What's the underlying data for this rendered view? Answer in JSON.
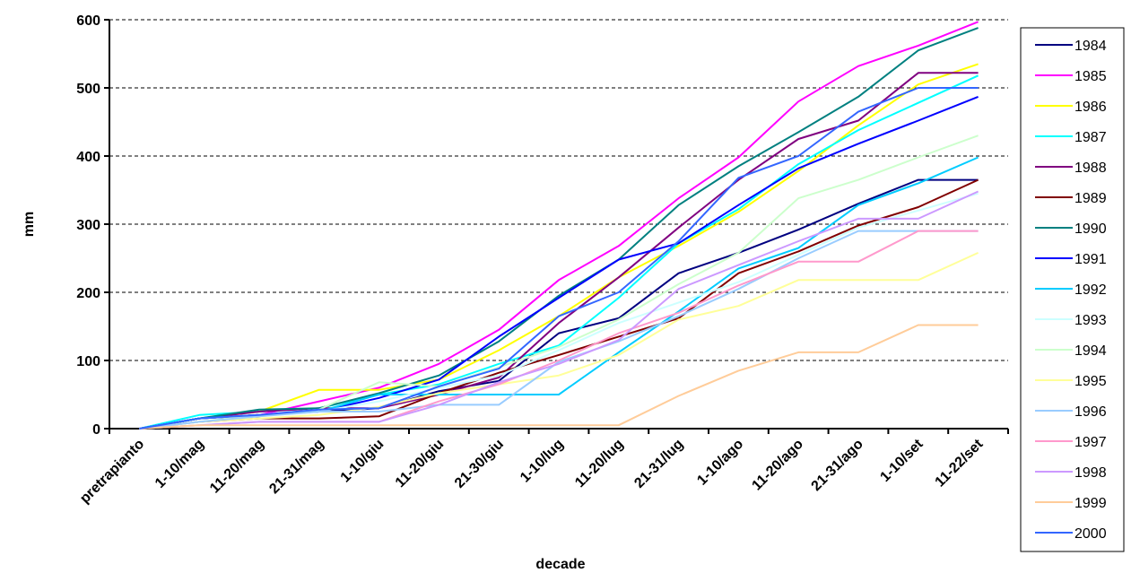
{
  "chart_data": {
    "type": "line",
    "xlabel": "decade",
    "ylabel": "mm",
    "ylim": [
      0,
      600
    ],
    "yticks": [
      0,
      100,
      200,
      300,
      400,
      500,
      600
    ],
    "grid": "horizontal dashed",
    "legend_position": "right",
    "categories": [
      "pretrapianto",
      "1-10/mag",
      "11-20/mag",
      "21-31/mag",
      "1-10/giu",
      "11-20/giu",
      "21-30/giu",
      "1-10/lug",
      "11-20/lug",
      "21-31/lug",
      "1-10/ago",
      "11-20/ago",
      "21-31/ago",
      "1-10/set",
      "11-22/set"
    ],
    "series": [
      {
        "name": "1984",
        "color": "#000080",
        "values": [
          0,
          15,
          20,
          25,
          30,
          55,
          70,
          140,
          162,
          228,
          258,
          292,
          330,
          365,
          365
        ]
      },
      {
        "name": "1985",
        "color": "#FF00FF",
        "values": [
          0,
          15,
          20,
          40,
          60,
          95,
          145,
          218,
          268,
          338,
          398,
          480,
          532,
          562,
          597
        ]
      },
      {
        "name": "1986",
        "color": "#FFFF00",
        "values": [
          0,
          15,
          25,
          57,
          57,
          72,
          115,
          165,
          222,
          268,
          318,
          378,
          445,
          505,
          535
        ]
      },
      {
        "name": "1987",
        "color": "#00FFFF",
        "values": [
          0,
          20,
          25,
          30,
          50,
          65,
          95,
          122,
          192,
          272,
          322,
          388,
          438,
          478,
          518
        ]
      },
      {
        "name": "1988",
        "color": "#800080",
        "values": [
          0,
          15,
          25,
          30,
          30,
          50,
          75,
          155,
          222,
          295,
          365,
          425,
          452,
          522,
          522
        ]
      },
      {
        "name": "1989",
        "color": "#800000",
        "values": [
          0,
          10,
          15,
          15,
          18,
          52,
          82,
          108,
          135,
          162,
          228,
          260,
          298,
          325,
          365
        ]
      },
      {
        "name": "1990",
        "color": "#008080",
        "values": [
          0,
          15,
          28,
          30,
          52,
          78,
          128,
          195,
          248,
          328,
          385,
          435,
          487,
          555,
          588
        ]
      },
      {
        "name": "1991",
        "color": "#0000FF",
        "values": [
          0,
          15,
          20,
          25,
          45,
          72,
          135,
          192,
          248,
          272,
          328,
          382,
          418,
          452,
          487
        ]
      },
      {
        "name": "1992",
        "color": "#00CCFF",
        "values": [
          0,
          15,
          20,
          25,
          50,
          50,
          50,
          50,
          112,
          172,
          235,
          265,
          328,
          360,
          398
        ]
      },
      {
        "name": "1993",
        "color": "#CCFFFF",
        "values": [
          0,
          10,
          18,
          25,
          40,
          60,
          78,
          115,
          155,
          185,
          215,
          255,
          295,
          320,
          345
        ]
      },
      {
        "name": "1994",
        "color": "#CCFFCC",
        "values": [
          0,
          10,
          20,
          28,
          68,
          62,
          90,
          120,
          160,
          212,
          258,
          338,
          365,
          398,
          430
        ]
      },
      {
        "name": "1995",
        "color": "#FFFF99",
        "values": [
          0,
          10,
          15,
          20,
          32,
          52,
          65,
          78,
          108,
          160,
          180,
          218,
          218,
          218,
          258
        ]
      },
      {
        "name": "1996",
        "color": "#99CCFF",
        "values": [
          0,
          10,
          18,
          25,
          25,
          35,
          35,
          98,
          128,
          165,
          205,
          250,
          290,
          290,
          290
        ]
      },
      {
        "name": "1997",
        "color": "#FF99CC",
        "values": [
          0,
          5,
          10,
          10,
          10,
          40,
          65,
          100,
          140,
          170,
          210,
          245,
          245,
          290,
          290
        ]
      },
      {
        "name": "1998",
        "color": "#CC99FF",
        "values": [
          0,
          5,
          10,
          10,
          10,
          35,
          68,
          95,
          130,
          205,
          240,
          275,
          308,
          308,
          348
        ]
      },
      {
        "name": "1999",
        "color": "#FFCC99",
        "values": [
          0,
          5,
          5,
          5,
          5,
          5,
          5,
          5,
          5,
          48,
          85,
          112,
          112,
          152,
          152
        ]
      },
      {
        "name": "2000",
        "color": "#3366FF",
        "values": [
          0,
          15,
          20,
          28,
          30,
          62,
          88,
          165,
          200,
          275,
          368,
          400,
          465,
          500,
          500
        ]
      }
    ]
  }
}
